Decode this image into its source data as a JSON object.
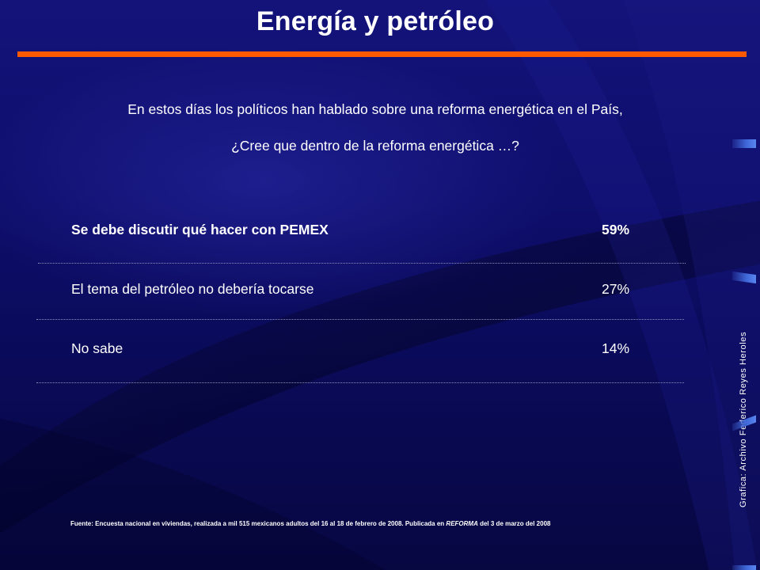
{
  "title": "Energía y petróleo",
  "accent_color": "#ff5a00",
  "question": {
    "line1": "En estos días los políticos han hablado sobre una reforma energética en el País,",
    "line2": "¿Cree que dentro de la reforma energética …?"
  },
  "chart_data": {
    "type": "table",
    "rows": [
      {
        "label": "Se debe discutir qué hacer con PEMEX",
        "value": "59%",
        "percent": 59
      },
      {
        "label": "El tema del petróleo no debería tocarse",
        "value": "27%",
        "percent": 27
      },
      {
        "label": "No sabe",
        "value": "14%",
        "percent": 14
      }
    ]
  },
  "source": {
    "prefix": "Fuente: Encuesta nacional en viviendas, realizada a mil 515 mexicanos adultos del 16 al 18 de febrero de 2008. Publicada en ",
    "publication": "REFORMA",
    "suffix": " del 3 de marzo del 2008"
  },
  "credit": "Grafica: Archivo Federico Reyes Heroles"
}
